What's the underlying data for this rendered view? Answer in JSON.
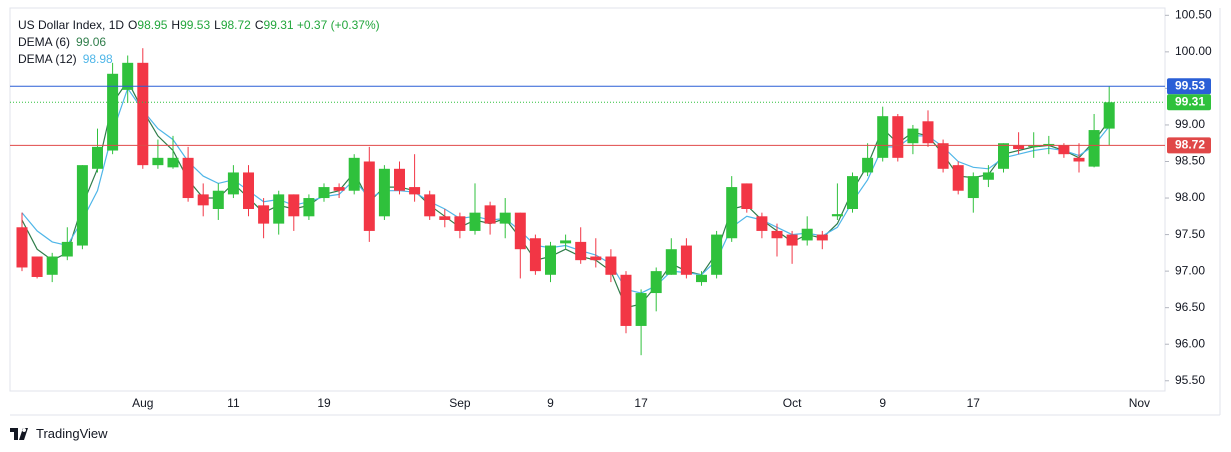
{
  "chart_data": {
    "type": "candlestick",
    "title": "US Dollar Index, 1D",
    "ohlc_legend": [
      {
        "label": "O",
        "value": 98.95
      },
      {
        "label": "H",
        "value": 99.53
      },
      {
        "label": "L",
        "value": 98.72
      },
      {
        "label": "C",
        "value": 99.31
      }
    ],
    "change_label": "+0.37 (+0.37%)",
    "legend_color": "#22a63c",
    "up_color": "#2fc13c",
    "down_color": "#f23645",
    "categories": [
      null,
      null,
      null,
      null,
      null,
      null,
      null,
      null,
      "Aug",
      null,
      null,
      null,
      null,
      null,
      "11",
      null,
      null,
      null,
      null,
      null,
      "19",
      null,
      null,
      null,
      null,
      null,
      null,
      null,
      null,
      "Sep",
      null,
      null,
      null,
      null,
      null,
      "9",
      null,
      null,
      null,
      null,
      null,
      "17",
      null,
      null,
      null,
      null,
      null,
      null,
      null,
      null,
      null,
      "Oct",
      null,
      null,
      null,
      null,
      null,
      "9",
      null,
      null,
      null,
      null,
      null,
      "17",
      null,
      null,
      null,
      null,
      null,
      null,
      null,
      null,
      null,
      null,
      "Nov",
      null
    ],
    "open": [
      97.6,
      97.2,
      96.95,
      97.2,
      97.35,
      98.4,
      98.65,
      99.48,
      99.85,
      98.45,
      98.42,
      98.55,
      98.05,
      97.85,
      98.05,
      98.35,
      97.9,
      97.65,
      98.05,
      97.75,
      98.0,
      98.15,
      98.1,
      98.5,
      97.75,
      98.4,
      98.15,
      98.05,
      97.75,
      97.75,
      97.55,
      97.9,
      97.65,
      97.8,
      97.45,
      96.95,
      97.38,
      97.4,
      97.2,
      97.2,
      96.95,
      96.25,
      96.7,
      96.95,
      97.35,
      96.85,
      96.95,
      97.45,
      98.2,
      97.75,
      97.55,
      97.5,
      97.42,
      97.5,
      97.75,
      97.85,
      98.35,
      98.55,
      99.12,
      98.75,
      99.05,
      98.75,
      98.45,
      98.0,
      98.25,
      98.4,
      98.72,
      98.7,
      98.72,
      98.72,
      98.55,
      98.43,
      98.95,
      null,
      null,
      null
    ],
    "high": [
      97.8,
      97.2,
      97.25,
      97.6,
      98.45,
      98.95,
      99.85,
      99.95,
      100.05,
      98.8,
      98.85,
      98.7,
      98.2,
      98.2,
      98.45,
      98.45,
      98.0,
      98.1,
      98.05,
      98.05,
      98.2,
      98.2,
      98.6,
      98.7,
      98.45,
      98.5,
      98.6,
      98.1,
      97.85,
      97.8,
      98.2,
      97.95,
      98.0,
      97.8,
      97.5,
      97.4,
      97.5,
      97.6,
      97.45,
      97.3,
      97.0,
      96.75,
      97.05,
      97.45,
      97.45,
      97.0,
      97.55,
      98.3,
      98.2,
      97.8,
      97.65,
      97.55,
      97.75,
      97.55,
      98.2,
      98.35,
      98.75,
      99.25,
      99.15,
      99.0,
      99.2,
      98.8,
      98.5,
      98.35,
      98.45,
      98.75,
      98.9,
      98.9,
      98.85,
      98.75,
      98.75,
      99.15,
      99.53,
      null,
      null,
      null
    ],
    "low": [
      97.0,
      96.9,
      96.85,
      97.15,
      97.3,
      98.35,
      98.6,
      99.3,
      98.4,
      98.4,
      98.4,
      97.95,
      97.75,
      97.7,
      98.0,
      97.75,
      97.45,
      97.5,
      97.55,
      97.7,
      97.95,
      98.0,
      98.05,
      97.4,
      97.7,
      98.05,
      97.95,
      97.7,
      97.6,
      97.45,
      97.5,
      97.5,
      97.45,
      96.9,
      96.95,
      96.85,
      97.3,
      97.1,
      97.05,
      96.85,
      96.15,
      95.85,
      96.45,
      96.95,
      96.9,
      96.8,
      96.9,
      97.4,
      97.8,
      97.45,
      97.2,
      97.1,
      97.35,
      97.3,
      97.7,
      97.8,
      98.3,
      98.5,
      98.5,
      98.6,
      98.7,
      98.35,
      98.05,
      97.8,
      98.15,
      98.35,
      98.6,
      98.55,
      98.6,
      98.55,
      98.35,
      98.42,
      98.72,
      null,
      null,
      null
    ],
    "close": [
      97.05,
      96.92,
      97.2,
      97.4,
      98.45,
      98.7,
      99.7,
      99.85,
      98.45,
      98.55,
      98.55,
      98.0,
      97.9,
      98.1,
      98.35,
      97.85,
      97.65,
      98.05,
      97.75,
      98.0,
      98.15,
      98.1,
      98.55,
      97.55,
      98.4,
      98.1,
      98.05,
      97.75,
      97.7,
      97.55,
      97.8,
      97.65,
      97.8,
      97.3,
      97.0,
      97.35,
      97.42,
      97.15,
      97.15,
      96.95,
      96.25,
      96.7,
      97.0,
      97.3,
      96.95,
      96.95,
      97.5,
      98.15,
      97.85,
      97.55,
      97.45,
      97.35,
      97.58,
      97.42,
      97.78,
      98.3,
      98.55,
      99.12,
      98.55,
      98.95,
      98.75,
      98.4,
      98.1,
      98.3,
      98.35,
      98.75,
      98.67,
      98.72,
      98.74,
      98.6,
      98.5,
      98.93,
      99.31,
      null,
      null,
      null
    ],
    "series": [
      {
        "name": "DEMA (6)",
        "color": "#2f7d4a",
        "values": [
          97.7,
          97.3,
          97.15,
          97.25,
          97.9,
          98.4,
          99.3,
          99.6,
          99.2,
          98.85,
          98.65,
          98.25,
          98.0,
          98.0,
          98.2,
          98.0,
          97.8,
          97.9,
          97.85,
          97.9,
          98.05,
          98.1,
          98.35,
          97.95,
          98.15,
          98.15,
          98.1,
          97.9,
          97.75,
          97.6,
          97.7,
          97.65,
          97.72,
          97.45,
          97.15,
          97.2,
          97.3,
          97.2,
          97.15,
          97.0,
          96.5,
          96.55,
          96.8,
          97.1,
          97.0,
          96.95,
          97.25,
          97.85,
          97.9,
          97.7,
          97.55,
          97.4,
          97.5,
          97.45,
          97.65,
          98.1,
          98.45,
          98.95,
          98.75,
          98.9,
          98.85,
          98.6,
          98.3,
          98.28,
          98.32,
          98.6,
          98.65,
          98.7,
          98.72,
          98.65,
          98.55,
          98.78,
          99.06,
          null,
          null,
          null
        ]
      },
      {
        "name": "DEMA (12)",
        "color": "#4fb6e8",
        "values": [
          97.8,
          97.55,
          97.4,
          97.35,
          97.7,
          98.1,
          98.9,
          99.5,
          99.2,
          98.95,
          98.8,
          98.5,
          98.3,
          98.2,
          98.25,
          98.1,
          97.95,
          97.98,
          97.9,
          97.95,
          98.02,
          98.05,
          98.25,
          98.0,
          98.1,
          98.1,
          98.08,
          97.95,
          97.85,
          97.72,
          97.75,
          97.7,
          97.72,
          97.55,
          97.35,
          97.32,
          97.35,
          97.28,
          97.22,
          97.1,
          96.75,
          96.7,
          96.8,
          97.0,
          96.98,
          96.95,
          97.15,
          97.6,
          97.75,
          97.7,
          97.6,
          97.5,
          97.52,
          97.48,
          97.6,
          97.95,
          98.25,
          98.7,
          98.7,
          98.85,
          98.85,
          98.7,
          98.5,
          98.42,
          98.4,
          98.55,
          98.6,
          98.65,
          98.68,
          98.65,
          98.58,
          98.72,
          98.98,
          null,
          null,
          null
        ]
      }
    ],
    "price_lines": [
      {
        "value": 99.53,
        "color": "#2a5fd6",
        "style": "solid"
      },
      {
        "value": 99.31,
        "color": "#2fc13c",
        "style": "dotted"
      },
      {
        "value": 98.72,
        "color": "#e04848",
        "style": "solid"
      }
    ],
    "ylim": [
      95.36,
      100.6
    ],
    "yticks": [
      {
        "value": 95.5,
        "label": "95.50"
      },
      {
        "value": 96,
        "label": "96.00"
      },
      {
        "value": 96.5,
        "label": "96.50"
      },
      {
        "value": 97,
        "label": "97.00"
      },
      {
        "value": 97.5,
        "label": "97.50"
      },
      {
        "value": 98,
        "label": "98.00"
      },
      {
        "value": 98.5,
        "label": "98.50"
      },
      {
        "value": 99,
        "label": "99.00"
      },
      {
        "value": 99.5,
        "label": "99.50"
      },
      {
        "value": 100,
        "label": "100.00"
      },
      {
        "value": 100.5,
        "label": "100.50"
      }
    ],
    "grid": false,
    "brand": "TradingView"
  }
}
